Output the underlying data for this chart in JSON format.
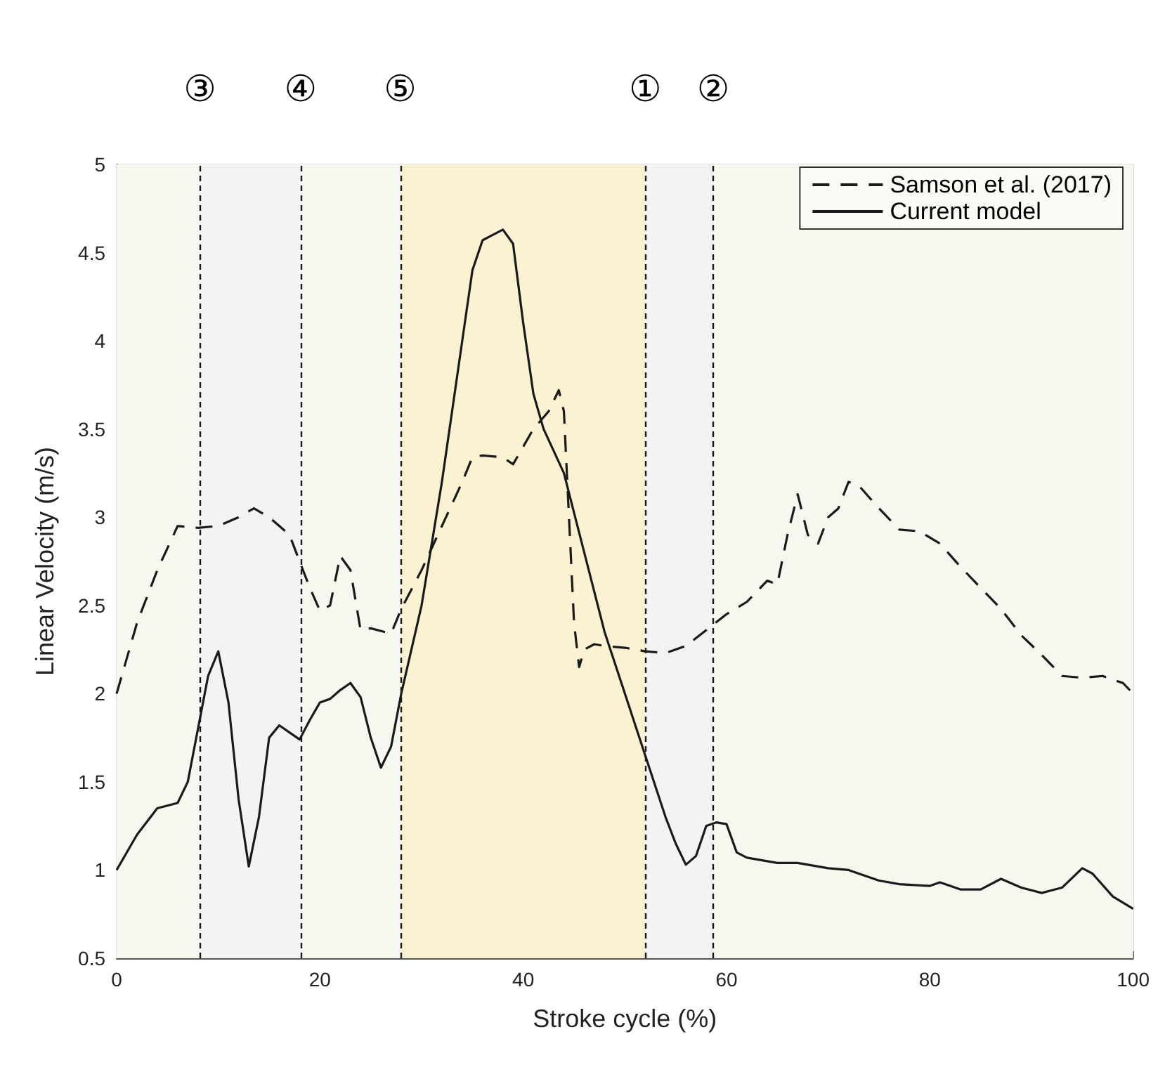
{
  "chart_data": {
    "type": "line",
    "xlabel": "Stroke cycle (%)",
    "ylabel": "Linear Velocity (m/s)",
    "xlim": [
      0,
      100
    ],
    "xticks": [
      0,
      20,
      40,
      60,
      80,
      100
    ],
    "ylim": [
      0.5,
      5
    ],
    "yticks": [
      0.5,
      1,
      1.5,
      2,
      2.5,
      3,
      3.5,
      4,
      4.5,
      5
    ],
    "grid": true,
    "legend": "top right",
    "marker": "none",
    "series": [
      {
        "name": "Samson et al. (2017)",
        "color": "#1a1a1a",
        "line_style": "dashed",
        "x": [
          0,
          2,
          4,
          6,
          8,
          10,
          12,
          13.5,
          15,
          17,
          18,
          19,
          20,
          21,
          22,
          23,
          24,
          25,
          27,
          28,
          30,
          32,
          34,
          35,
          36,
          38,
          39,
          41,
          42.5,
          43.5,
          44,
          45,
          45.5,
          46,
          47,
          48,
          50,
          52,
          54,
          56,
          58,
          60,
          62,
          64,
          65,
          66,
          67,
          68,
          69,
          70,
          71,
          72,
          73,
          75,
          77,
          79,
          81,
          83,
          85,
          87,
          89,
          91,
          93,
          95,
          97,
          99,
          100
        ],
        "values": [
          2.0,
          2.4,
          2.7,
          2.95,
          2.94,
          2.95,
          3.0,
          3.05,
          3.0,
          2.9,
          2.75,
          2.6,
          2.47,
          2.5,
          2.78,
          2.7,
          2.36,
          2.37,
          2.34,
          2.48,
          2.7,
          2.95,
          3.2,
          3.34,
          3.35,
          3.34,
          3.3,
          3.5,
          3.6,
          3.72,
          3.6,
          2.4,
          2.15,
          2.25,
          2.28,
          2.27,
          2.26,
          2.24,
          2.23,
          2.27,
          2.36,
          2.45,
          2.52,
          2.64,
          2.62,
          2.9,
          3.13,
          2.9,
          2.85,
          3.0,
          3.05,
          3.2,
          3.18,
          3.05,
          2.93,
          2.92,
          2.85,
          2.72,
          2.6,
          2.48,
          2.33,
          2.22,
          2.1,
          2.09,
          2.1,
          2.06,
          2.0
        ]
      },
      {
        "name": "Current model",
        "color": "#1a1a1a",
        "line_style": "solid",
        "x": [
          0,
          2,
          4,
          6,
          7,
          8,
          9,
          10,
          11,
          12,
          13,
          14,
          15,
          16,
          17,
          18,
          19,
          20,
          21,
          22,
          23,
          24,
          25,
          26,
          27,
          28,
          30,
          32,
          34,
          35,
          36,
          37,
          38,
          39,
          40,
          41,
          42,
          44,
          46,
          48,
          50,
          52,
          54,
          55,
          56,
          57,
          58,
          59,
          60,
          61,
          62,
          65,
          67,
          70,
          72,
          75,
          77,
          80,
          81,
          83,
          85,
          87,
          89,
          91,
          93,
          95,
          96,
          98,
          100
        ],
        "values": [
          1.0,
          1.2,
          1.35,
          1.38,
          1.5,
          1.8,
          2.1,
          2.24,
          1.95,
          1.4,
          1.02,
          1.3,
          1.75,
          1.82,
          1.78,
          1.74,
          1.85,
          1.95,
          1.97,
          2.02,
          2.06,
          1.98,
          1.75,
          1.58,
          1.7,
          2.0,
          2.5,
          3.2,
          4.0,
          4.4,
          4.57,
          4.6,
          4.63,
          4.55,
          4.1,
          3.7,
          3.5,
          3.25,
          2.8,
          2.35,
          2.0,
          1.65,
          1.3,
          1.15,
          1.03,
          1.08,
          1.25,
          1.27,
          1.26,
          1.1,
          1.07,
          1.04,
          1.04,
          1.01,
          1.0,
          0.94,
          0.92,
          0.91,
          0.93,
          0.89,
          0.89,
          0.95,
          0.9,
          0.87,
          0.9,
          1.01,
          0.98,
          0.85,
          0.78
        ]
      }
    ],
    "ref_lines": [
      {
        "axis": "x",
        "value": 8.2,
        "label": "③",
        "line_style": "dashed",
        "color": "#1a1a1a"
      },
      {
        "axis": "x",
        "value": 18.1,
        "label": "④",
        "line_style": "dashed",
        "color": "#1a1a1a"
      },
      {
        "axis": "x",
        "value": 27.9,
        "label": "⑤",
        "line_style": "dashed",
        "color": "#1a1a1a"
      },
      {
        "axis": "x",
        "value": 52,
        "label": "①",
        "line_style": "dashed",
        "color": "#1a1a1a"
      },
      {
        "axis": "x",
        "value": 58.7,
        "label": "②",
        "line_style": "dashed",
        "color": "#1a1a1a"
      }
    ],
    "bands": [
      {
        "axis": "x",
        "from": 0,
        "to": 8.2,
        "color": "#f5f8ee"
      },
      {
        "axis": "x",
        "from": 8.2,
        "to": 18.1,
        "color": "#f3f3f3"
      },
      {
        "axis": "x",
        "from": 18.1,
        "to": 27.9,
        "color": "#f5f8ee"
      },
      {
        "axis": "x",
        "from": 27.9,
        "to": 52,
        "color": "#fbf1d3"
      },
      {
        "axis": "x",
        "from": 52,
        "to": 58.7,
        "color": "#f3f3f3"
      },
      {
        "axis": "x",
        "from": 58.7,
        "to": 100,
        "color": "#f5f8ee"
      }
    ]
  }
}
